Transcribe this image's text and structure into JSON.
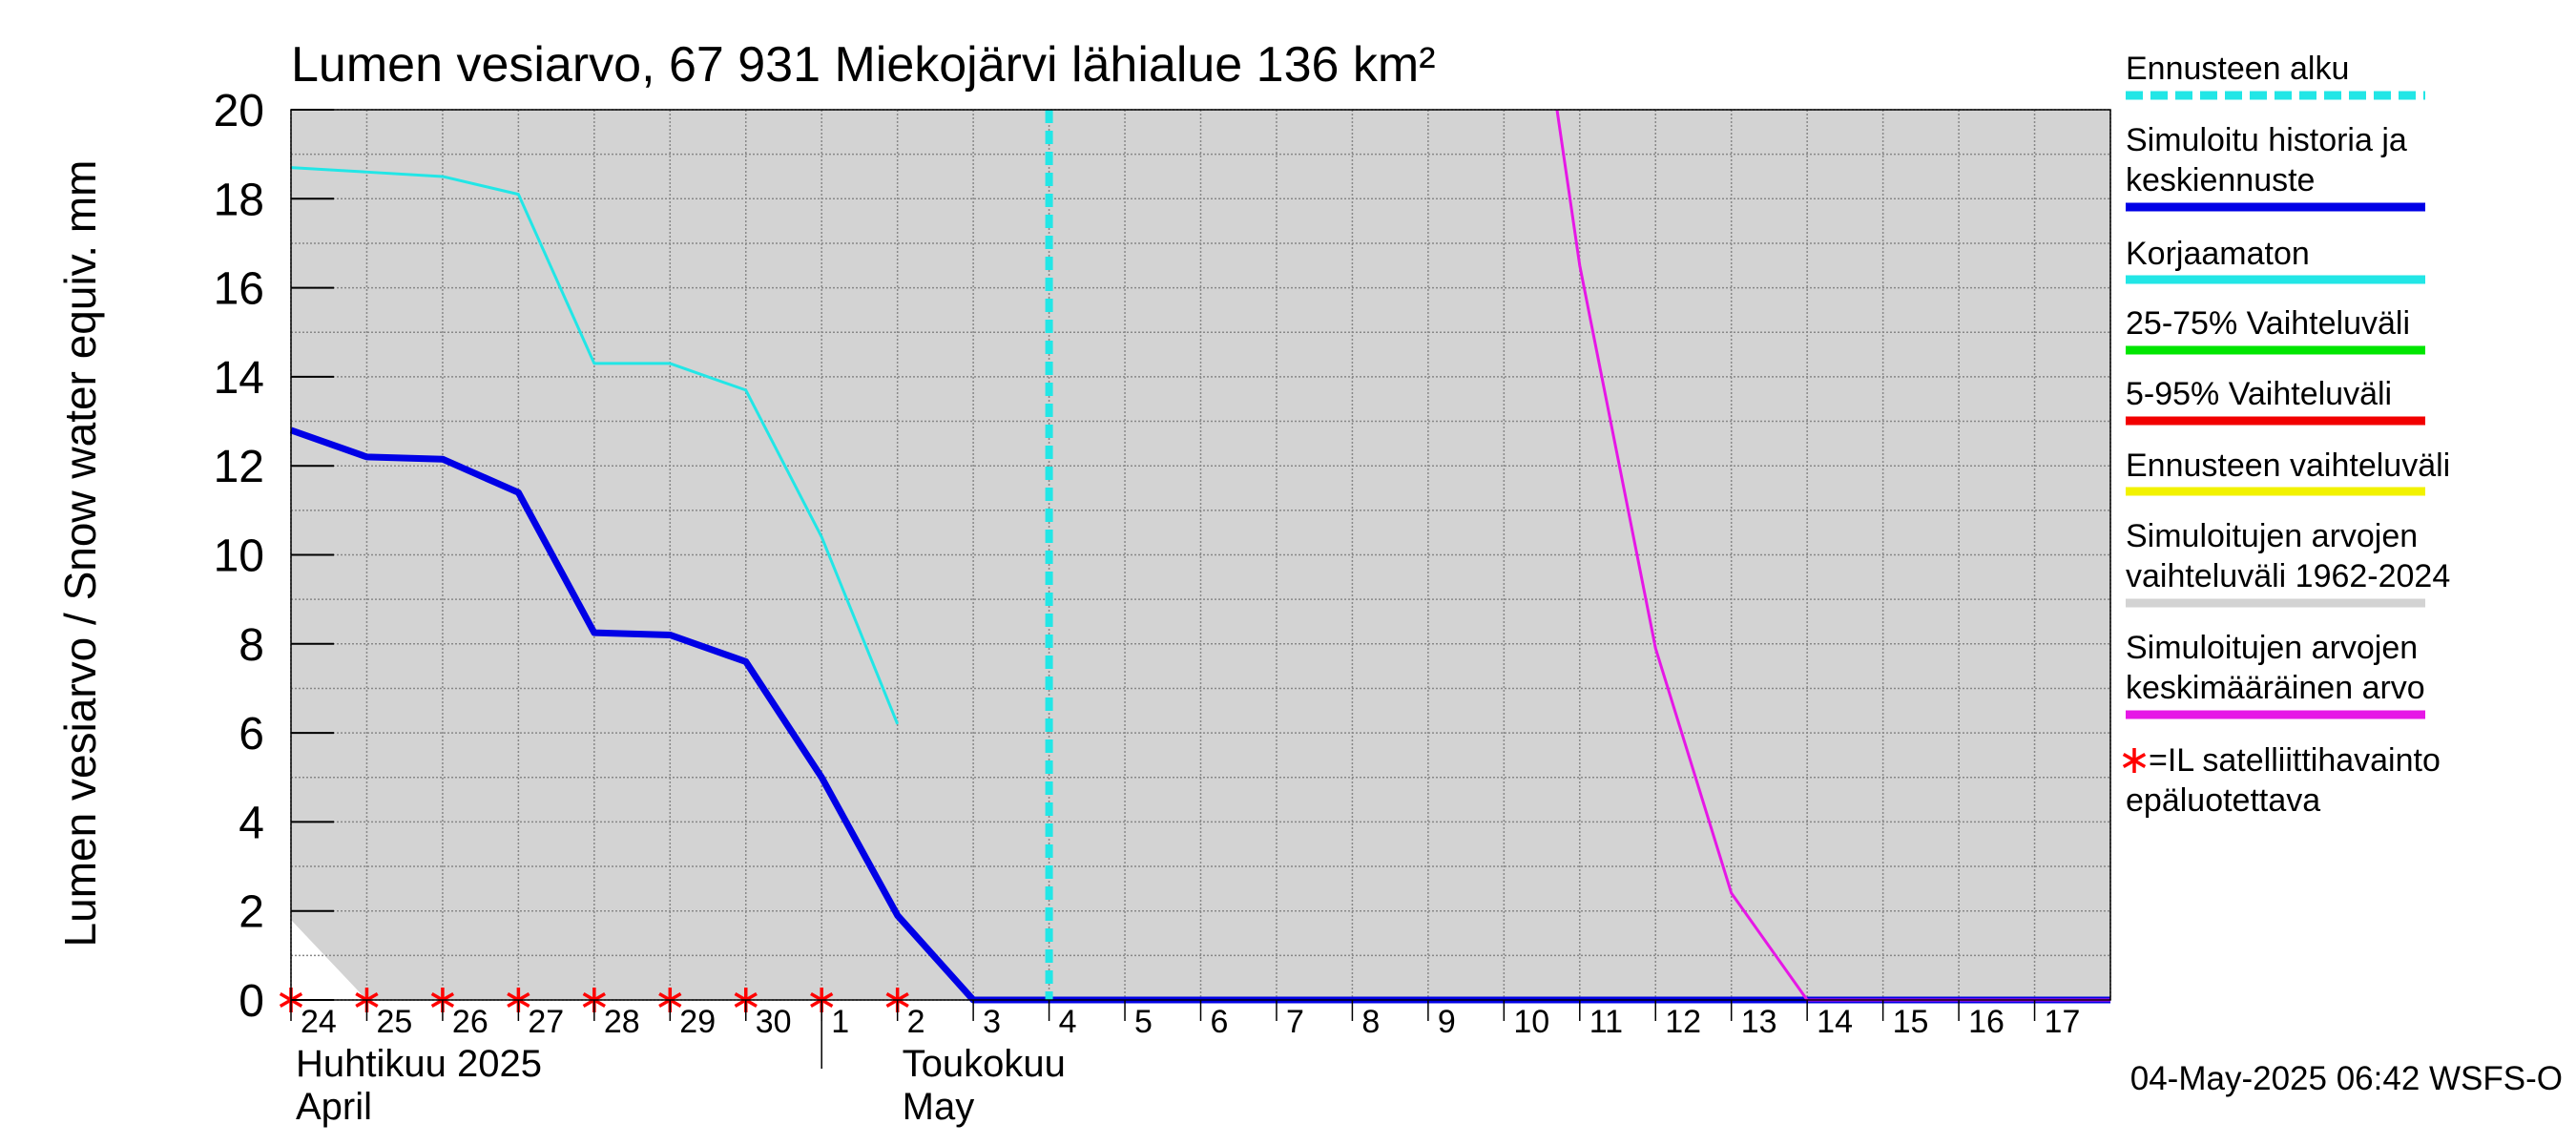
{
  "chart_data": {
    "type": "line",
    "title": "Lumen vesiarvo, 67 931 Miekojärvi lähialue 136 km²",
    "ylabel": "Lumen vesiarvo / Snow water equiv.    mm",
    "ylim": [
      0,
      20
    ],
    "yticks": [
      0,
      2,
      4,
      6,
      8,
      10,
      12,
      14,
      16,
      18,
      20
    ],
    "xlim": [
      0,
      24
    ],
    "x_tick_labels": [
      {
        "x": 0,
        "label": "24"
      },
      {
        "x": 1,
        "label": "25"
      },
      {
        "x": 2,
        "label": "26"
      },
      {
        "x": 3,
        "label": "27"
      },
      {
        "x": 4,
        "label": "28"
      },
      {
        "x": 5,
        "label": "29"
      },
      {
        "x": 6,
        "label": "30"
      },
      {
        "x": 7,
        "label": "1"
      },
      {
        "x": 8,
        "label": "2"
      },
      {
        "x": 9,
        "label": "3"
      },
      {
        "x": 10,
        "label": "4"
      },
      {
        "x": 11,
        "label": "5"
      },
      {
        "x": 12,
        "label": "6"
      },
      {
        "x": 13,
        "label": "7"
      },
      {
        "x": 14,
        "label": "8"
      },
      {
        "x": 15,
        "label": "9"
      },
      {
        "x": 16,
        "label": "10"
      },
      {
        "x": 17,
        "label": "11"
      },
      {
        "x": 18,
        "label": "12"
      },
      {
        "x": 19,
        "label": "13"
      },
      {
        "x": 20,
        "label": "14"
      },
      {
        "x": 21,
        "label": "15"
      },
      {
        "x": 22,
        "label": "16"
      },
      {
        "x": 23,
        "label": "17"
      }
    ],
    "month_labels": [
      {
        "x": 0,
        "line1": "Huhtikuu  2025",
        "line2": "April"
      },
      {
        "x": 8,
        "line1": "Toukokuu",
        "line2": "May"
      }
    ],
    "month_divider_x": 7,
    "grey_band": [
      [
        0,
        20
      ],
      [
        24,
        20
      ],
      [
        24,
        0
      ],
      [
        1,
        0
      ],
      [
        0,
        1.8
      ]
    ],
    "forecast_start_x": 10,
    "series": [
      {
        "name": "Korjaamaton",
        "color": "#22e6e6",
        "width": 3,
        "x": [
          0,
          1,
          2,
          3,
          4,
          5,
          6,
          7,
          8
        ],
        "y": [
          18.7,
          18.6,
          18.5,
          18.1,
          14.3,
          14.3,
          13.7,
          10.4,
          6.2
        ]
      },
      {
        "name": "Simuloitu historia ja keskiennuste",
        "color": "#0000e6",
        "width": 7,
        "x": [
          0,
          1,
          2,
          3,
          4,
          5,
          6,
          7,
          8,
          9,
          24
        ],
        "y": [
          12.8,
          12.2,
          12.15,
          11.4,
          8.25,
          8.2,
          7.6,
          5.0,
          1.9,
          0,
          0
        ]
      },
      {
        "name": "Simuloitujen arvojen keskimääräinen arvo",
        "color": "#e617e6",
        "width": 3,
        "x": [
          16.7,
          17,
          18,
          19,
          20,
          24
        ],
        "y": [
          20,
          16.5,
          7.9,
          2.4,
          0,
          0
        ]
      }
    ],
    "satellite_markers_x": [
      0,
      1,
      2,
      3,
      4,
      5,
      6,
      7,
      8
    ],
    "legend": [
      {
        "lines": [
          "Ennusteen alku"
        ],
        "color": "#22e6e6",
        "style": "dashed"
      },
      {
        "lines": [
          "Simuloitu historia ja",
          "keskiennuste"
        ],
        "color": "#0000e6",
        "style": "solid"
      },
      {
        "lines": [
          "Korjaamaton"
        ],
        "color": "#22e6e6",
        "style": "solid"
      },
      {
        "lines": [
          "25-75% Vaihteluväli"
        ],
        "color": "#00e600",
        "style": "solid"
      },
      {
        "lines": [
          "5-95% Vaihteluväli"
        ],
        "color": "#f20000",
        "style": "solid"
      },
      {
        "lines": [
          "Ennusteen vaihteluväli"
        ],
        "color": "#f2f200",
        "style": "solid"
      },
      {
        "lines": [
          "Simuloitujen arvojen",
          "vaihteluväli 1962-2024"
        ],
        "color": "#d3d3d3",
        "style": "solid"
      },
      {
        "lines": [
          "Simuloitujen arvojen",
          "keskimääräinen arvo"
        ],
        "color": "#e617e6",
        "style": "solid"
      }
    ],
    "satellite_legend": {
      "symbol": "✳",
      "lines": [
        "=IL satelliittihavainto",
        "epäluotettava"
      ]
    },
    "timestamp": "04-May-2025 06:42 WSFS-O"
  }
}
